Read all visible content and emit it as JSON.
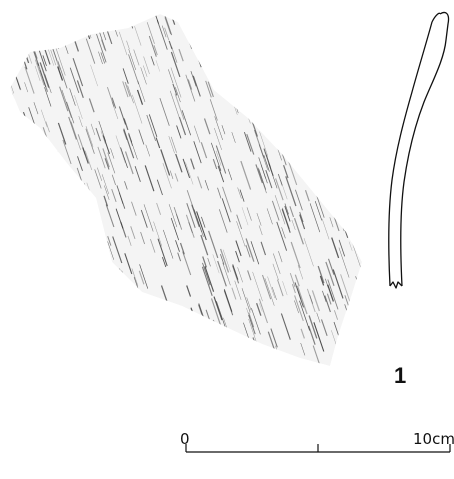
{
  "figure": {
    "number": "1"
  },
  "scale_bar": {
    "start_label": "0",
    "end_label": "10cm",
    "segments": 2
  },
  "colors": {
    "ink": "#111111",
    "hatch": "#3a3a3a",
    "background": "#ffffff"
  }
}
